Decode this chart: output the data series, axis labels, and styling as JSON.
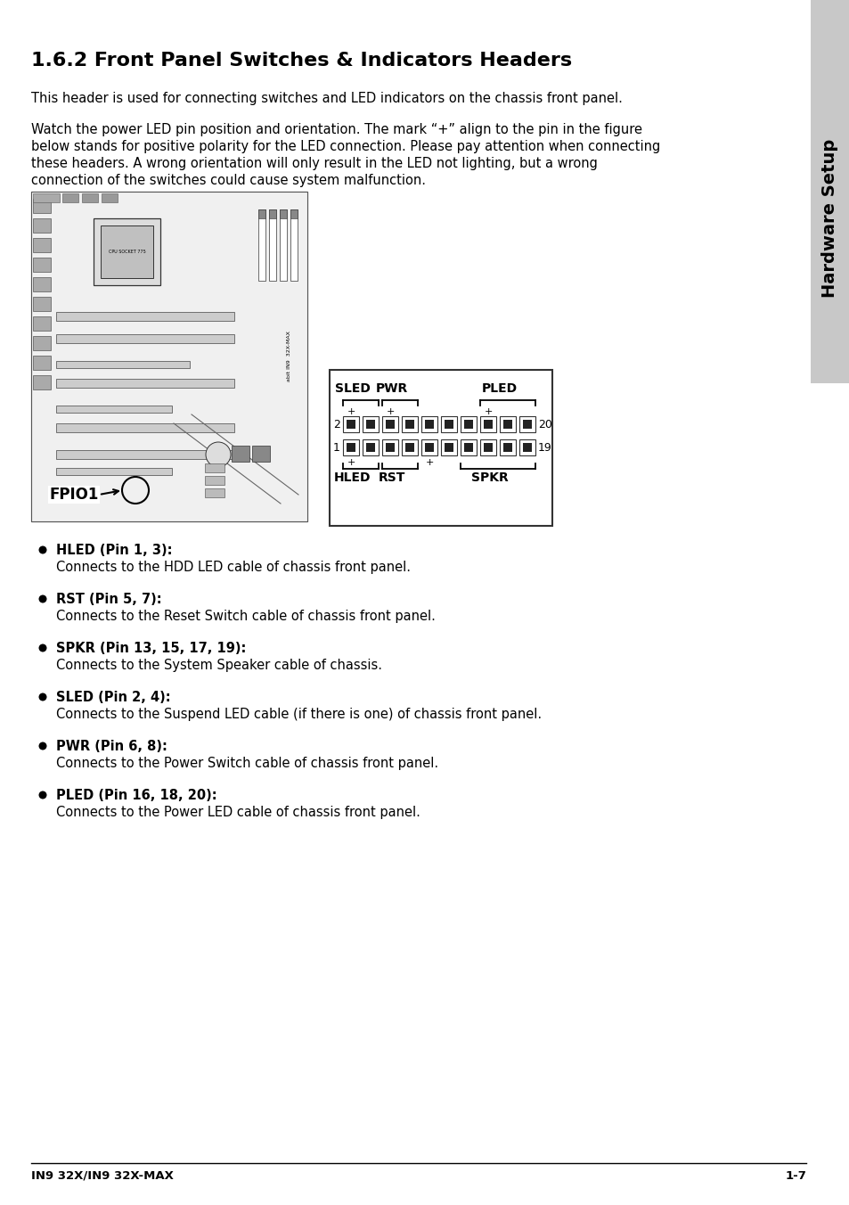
{
  "title": "1.6.2 Front Panel Switches & Indicators Headers",
  "sidebar_text": "Hardware Setup",
  "para1": "This header is used for connecting switches and LED indicators on the chassis front panel.",
  "para2_lines": [
    "Watch the power LED pin position and orientation. The mark “+” align to the pin in the figure",
    "below stands for positive polarity for the LED connection. Please pay attention when connecting",
    "these headers. A wrong orientation will only result in the LED not lighting, but a wrong",
    "connection of the switches could cause system malfunction."
  ],
  "bullets": [
    {
      "label": "HLED (Pin 1, 3):",
      "text": "Connects to the HDD LED cable of chassis front panel."
    },
    {
      "label": "RST (Pin 5, 7):",
      "text": "Connects to the Reset Switch cable of chassis front panel."
    },
    {
      "label": "SPKR (Pin 13, 15, 17, 19):",
      "text": "Connects to the System Speaker cable of chassis."
    },
    {
      "label": "SLED (Pin 2, 4):",
      "text": "Connects to the Suspend LED cable (if there is one) of chassis front panel."
    },
    {
      "label": "PWR (Pin 6, 8):",
      "text": "Connects to the Power Switch cable of chassis front panel."
    },
    {
      "label": "PLED (Pin 16, 18, 20):",
      "text": "Connects to the Power LED cable of chassis front panel."
    }
  ],
  "footer_left": "IN9 32X/IN9 32X-MAX",
  "footer_right": "1-7",
  "bg_color": "#ffffff",
  "sidebar_bg": "#c8c8c8",
  "text_color": "#000000"
}
